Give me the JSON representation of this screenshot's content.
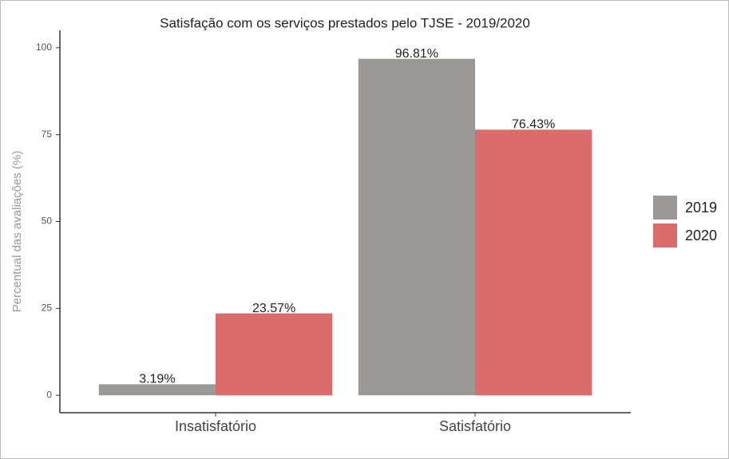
{
  "chart_data": {
    "type": "bar",
    "title": "Satisfação com os serviços prestados pelo TJSE - 2019/2020",
    "y_label": "Percentual das avaliações (%)",
    "categories": [
      "Insatisfatório",
      "Satisfatório"
    ],
    "series": [
      {
        "name": "2019",
        "color": "#9a9998",
        "values": [
          3.19,
          96.81
        ],
        "value_labels": [
          "3.19%",
          "96.81%"
        ]
      },
      {
        "name": "2020",
        "color": "#dc6b6b",
        "values": [
          23.57,
          76.43
        ],
        "value_labels": [
          "23.57%",
          "76.43%"
        ]
      }
    ],
    "ylim": [
      -5,
      105
    ],
    "yticks": [
      0,
      25,
      50,
      75,
      100
    ],
    "legend": "right"
  }
}
